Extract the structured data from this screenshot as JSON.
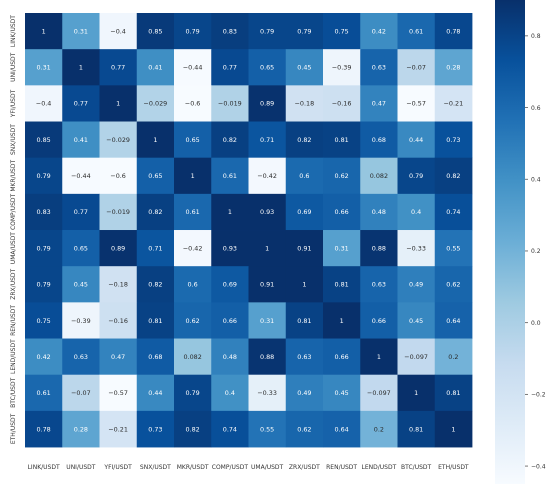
{
  "chart_data": {
    "type": "heatmap",
    "title": "",
    "xlabel": "",
    "ylabel": "",
    "labels": [
      "LINK/USDT",
      "UNI/USDT",
      "YFI/USDT",
      "SNX/USDT",
      "MKR/USDT",
      "COMP/USDT",
      "UMA/USDT",
      "ZRX/USDT",
      "REN/USDT",
      "LEND/USDT",
      "BTC/USDT",
      "ETH/USDT"
    ],
    "matrix": [
      [
        1,
        0.31,
        -0.4,
        0.85,
        0.79,
        0.83,
        0.79,
        0.79,
        0.75,
        0.42,
        0.61,
        0.78
      ],
      [
        0.31,
        1,
        0.77,
        0.41,
        -0.44,
        0.77,
        0.65,
        0.45,
        -0.39,
        0.63,
        -0.07,
        0.28
      ],
      [
        -0.4,
        0.77,
        1,
        -0.029,
        -0.6,
        -0.019,
        0.89,
        -0.18,
        -0.16,
        0.47,
        -0.57,
        -0.21
      ],
      [
        0.85,
        0.41,
        -0.029,
        1,
        0.65,
        0.82,
        0.71,
        0.82,
        0.81,
        0.68,
        0.44,
        0.73
      ],
      [
        0.79,
        -0.44,
        -0.6,
        0.65,
        1,
        0.61,
        -0.42,
        0.6,
        0.62,
        0.082,
        0.79,
        0.82
      ],
      [
        0.83,
        0.77,
        -0.019,
        0.82,
        0.61,
        1,
        0.93,
        0.69,
        0.66,
        0.48,
        0.4,
        0.74
      ],
      [
        0.79,
        0.65,
        0.89,
        0.71,
        -0.42,
        0.93,
        1,
        0.91,
        0.31,
        0.88,
        -0.33,
        0.55
      ],
      [
        0.79,
        0.45,
        -0.18,
        0.82,
        0.6,
        0.69,
        0.91,
        1,
        0.81,
        0.63,
        0.49,
        0.62
      ],
      [
        0.75,
        -0.39,
        -0.16,
        0.81,
        0.62,
        0.66,
        0.31,
        0.81,
        1,
        0.66,
        0.45,
        0.64
      ],
      [
        0.42,
        0.63,
        0.47,
        0.68,
        0.082,
        0.48,
        0.88,
        0.63,
        0.66,
        1,
        -0.097,
        0.2
      ],
      [
        0.61,
        -0.07,
        -0.57,
        0.44,
        0.79,
        0.4,
        -0.33,
        0.49,
        0.45,
        -0.097,
        1,
        0.81
      ],
      [
        0.78,
        0.28,
        -0.21,
        0.73,
        0.82,
        0.74,
        0.55,
        0.62,
        0.64,
        0.2,
        0.81,
        1
      ]
    ],
    "colorbar": {
      "vmin": -0.45,
      "vmax": 0.9,
      "ticks": [
        0.8,
        0.6,
        0.4,
        0.2,
        0.0,
        -0.2,
        -0.4
      ],
      "tick_labels": [
        "0.8",
        "0.6",
        "0.4",
        "0.2",
        "0.0",
        "−0.2",
        "−0.4"
      ]
    },
    "colormap": "Blues",
    "grid": false,
    "annotations": true
  }
}
